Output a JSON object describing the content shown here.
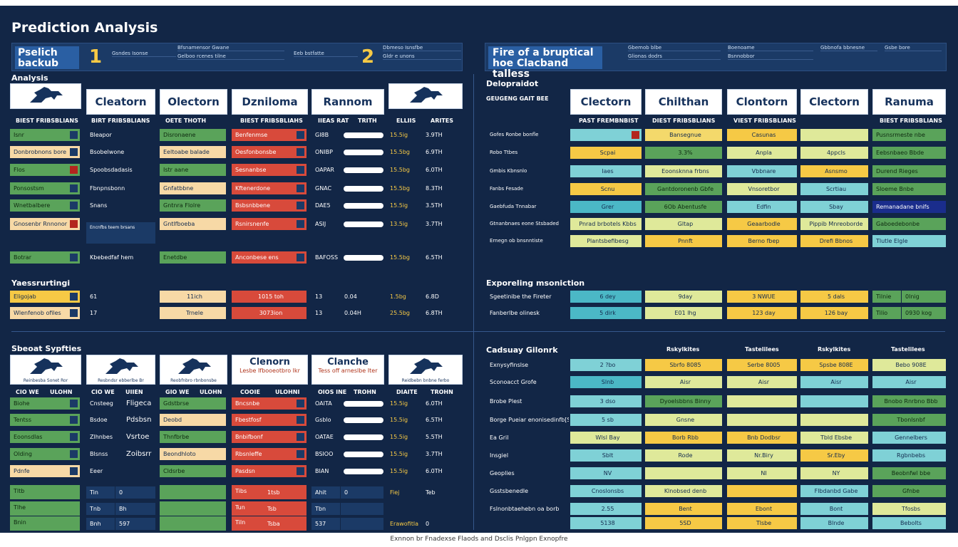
{
  "title": "Prediction Analysis",
  "footer": "Exnnon br Fnadexse Flaods and Dsclis Pnlgpn Exnopfre",
  "left_header": {
    "label": "Pselich backub",
    "num1": "1",
    "num2": "2",
    "mini": [
      "Gsndes Isonse",
      "Bfsnamensor Gwane",
      "Gelboo rcenes tilne",
      "Eeb bstfatte",
      "Dbmeso Isnsfbe",
      "Gldr e unons"
    ]
  },
  "right_header": {
    "label": "Fire of a bruptical hoe Clacband talless",
    "mini": [
      "Gbemob blbe",
      "Glionas dodrs",
      "Boenoame",
      "Bsnnobbor",
      "Gbbnofa bbnesne",
      "Gsbe bore"
    ]
  },
  "analysis": {
    "label": "Analysis",
    "cards": [
      "Cleatorn",
      "Olectorn",
      "Dzniloma",
      "Rannom"
    ],
    "col_headers": [
      "BIEST FRIBSBLIANS",
      "BIRT FRIBSBLIANS",
      "OETE THOTH",
      "BIEST FRIBSBLIAHS",
      "IIEAS RAT",
      "TRITH",
      "ELLIIS",
      "ARITES"
    ],
    "col1": [
      "Isnr",
      "Donbrobnons bore",
      "Flos",
      "Ponsostsm",
      "Wnetbalbere",
      "Gnosenbr Rnnonor",
      "Botrar"
    ],
    "col2": [
      "Bleapor",
      "Bsobelwone",
      "Spoobsdadasis",
      "Fbnpnsbonn",
      "Snans",
      "Encnfbs teem brsans",
      "Kbebedfaf hem"
    ],
    "col3": [
      "Disronaene",
      "Eeltoabe balade",
      "Istr aane",
      "Gnfatbbne",
      "Gntnra Flolre",
      "Gntlfboeba",
      "Enetdbe"
    ],
    "col4": [
      "Benfenmse",
      "Oesfonbonsbe",
      "Sesnanbse",
      "Kftenerdone",
      "Bsbsnbbene",
      "Rsnirsnenfe",
      "Anconbese ens"
    ],
    "col5": [
      "GI8B",
      "ONIBP",
      "OAPAR",
      "GNAC",
      "DAE5",
      "ASIJ",
      "BAFOSS"
    ],
    "col6": [
      "15.5ig",
      "15.5bg",
      "15.5bg",
      "15.5bg",
      "15.5ig",
      "13.5ig",
      "15.5bg"
    ],
    "col7": [
      "3.9TH",
      "6.9TH",
      "6.0TH",
      "8.3TH",
      "3.5TH",
      "3.7TH",
      "6.5TH"
    ]
  },
  "yearly": {
    "label": "Yaessrurtingi",
    "rows": [
      {
        "a": "Eligojab",
        "b": "61",
        "c": "11ich",
        "d": "1015 toh",
        "e": "13",
        "f": "0.04",
        "g": "1.5bg",
        "h": "6.8D"
      },
      {
        "a": "Wlenfenob ofiles",
        "b": "17",
        "c": "Trnele",
        "d": "3073ion",
        "e": "13",
        "f": "0.04H",
        "g": "25.5bg",
        "h": "6.8TH"
      }
    ]
  },
  "deloproidot": {
    "label": "Delopraidot",
    "sublabel": "GEUGENG GAIT BEE",
    "cards": [
      "Clectorn",
      "Chilthan",
      "Clontorn",
      "Clectorn",
      "Ranuma"
    ],
    "col_headers": [
      "PAST FREMBNBIST",
      "DIEST FRIBSBLIANS",
      "VIEST FRIBSBLIANS",
      "BIEST FRIBSBLIANS"
    ],
    "left": [
      "Gofes Ronbe bonfle",
      "Robo Ttbes",
      "Gmbis Kbnsnlo",
      "Fanbs Fesade",
      "Gaebfuda Tnnabar",
      "Gtnanbnaes eone Stsbaded",
      "Ernegn ob bnsnntiste"
    ],
    "c1": [
      "",
      "Scpai",
      "Iaes",
      "Scnu",
      "Grer",
      "Pnrad brbotels Kbbs",
      "Plantsbefibesg"
    ],
    "c2": [
      "Bansegnue",
      "3.3%",
      "Eoonsknna frbns",
      "Gantdoronenb Gbfe",
      "6Ob Abentusfe",
      "Gltap",
      "Pnnft"
    ],
    "c3": [
      "Casunas",
      "Anpla",
      "Vbbnare",
      "Vnsoretbor",
      "Edfin",
      "Geaarbodle",
      "Berno fbep"
    ],
    "c4": [
      "",
      "4ppcls",
      "Asnsmo",
      "Scrtiau",
      "Sbay",
      "Pippib Mnreoborde",
      "Drefi Bbnos"
    ],
    "c5": [
      "Pusnsrmeste nbe",
      "Eebsnbaeo Bbde",
      "Durend Rieges",
      "Sloeme Bnbe",
      "Remanadane bnifs",
      "Gaboedebonbe",
      "Tlutle Elgle"
    ]
  },
  "exploring": {
    "label": "Exporeling msoniction",
    "rows": [
      {
        "a": "Sgeetinibe the Fireter",
        "b": "6 dey",
        "c": "9day",
        "d": "3 NWUE",
        "e": "5 dals",
        "f": "Tilnie",
        "g": "0lnig"
      },
      {
        "a": "Fanberlbe olinesk",
        "b": "5 dirk",
        "c": "E01 lhg",
        "d": "123 day",
        "e": "126 bay",
        "f": "Tilio",
        "g": "0930 kog"
      }
    ]
  },
  "sports": {
    "label": "Sbeoat Sypfties",
    "cards": [
      "Clenorn",
      "Clanche"
    ],
    "card_subs": [
      "Lesbe Ifbooeotbro Ikr",
      "Tess off arneslbe Iter"
    ],
    "horse_caps": [
      "Reinbesba Sonet Ror",
      "Resbndsr ebberlbe Br",
      "Reobfnbro rbnbonsbe",
      "Reidbebn bnbne ferbo"
    ],
    "col_headers": [
      "CIO WE",
      "ULOHN",
      "CIO WE",
      "UIIEN",
      "GIO WE",
      "ULOHN",
      "COOIE",
      "ULOHNI",
      "OIOS INE",
      "TROHN",
      "DIAITE",
      "TROHN"
    ],
    "col1": [
      "Biohe",
      "Tentss",
      "Eoonsdlas",
      "Olding",
      "Pdnfe"
    ],
    "col2": [
      "Cnsteeg",
      "Bsdoe",
      "Zlhnbes",
      "Blsnss",
      "Eeer"
    ],
    "col2b": [
      "Fligeca",
      "Pdsbsn",
      "Vsrtoe",
      "Zoibsrr",
      ""
    ],
    "col3": [
      "Gdstbrse",
      "Deobd",
      "Thnfbrbe",
      "Beondhloto",
      "Cldsrbe"
    ],
    "col4": [
      "Bncsnbe",
      "Fbestfosf",
      "Bnbifbonf",
      "Rbsnleffe",
      "Pasdsn"
    ],
    "col5": [
      "OAITA",
      "Gsblo",
      "OATAE",
      "BSIOO",
      "BIAN"
    ],
    "col6": [
      "15.5ig",
      "15.5ig",
      "15.5ig",
      "15.5ig",
      "15.5ig"
    ],
    "col7": [
      "6.0TH",
      "6.5TH",
      "5.5TH",
      "3.7TH",
      "6.0TH"
    ]
  },
  "sports_totals": {
    "rows": [
      {
        "a": "Tltb",
        "b": "Tin",
        "c": "0",
        "d": "",
        "e": "Tibs",
        "f": "1tsb",
        "g": "Ahit",
        "h": "0",
        "i": "Fiej",
        "j": "Teb"
      },
      {
        "a": "Tlhe",
        "b": "Tnb",
        "c": "Bh",
        "d": "",
        "e": "Tun",
        "f": "Tsb",
        "g": "Tbn",
        "h": "",
        "i": "",
        "j": ""
      },
      {
        "a": "Bnin",
        "b": "Bnh",
        "c": "597",
        "d": "",
        "e": "Tiln",
        "f": "Tsba",
        "g": "537",
        "h": "",
        "i": "Erawofitla",
        "j": "0"
      }
    ]
  },
  "catalog": {
    "label": "Cadsuay Gilonrk",
    "col_headers": [
      "Rskylkites",
      "Tastelilees",
      "Rskylkites",
      "Tastelilees"
    ],
    "left": [
      "Exnysyfinslse",
      "Sconoacct Grofe",
      "Brobe Plest",
      "Borge Pueiar enonisedinfb[Si",
      "Ea Gril",
      "Insgiel",
      "Geoplies",
      "Gsstsbenedle",
      "Fslnonbtaehebn oa borb"
    ],
    "c1": [
      "2 ?bo",
      "Slnb",
      "3 dso",
      "5 sb",
      "Wlsl Bay",
      "Sblt",
      "NV",
      "Cnoslonsbs",
      "2.55",
      "5138"
    ],
    "c2": [
      "Sbrfo 8085",
      "Aisr",
      "Dyoelsbbns Binny",
      "Gnsne",
      "Borb Rbb",
      "Rode",
      "",
      "Klnobsed denb",
      "Bent",
      "5SD"
    ],
    "c3": [
      "Serbe 8005",
      "Aisr",
      "",
      "",
      "Bnb Dodbsr",
      "Nr.Biry",
      "NI",
      "",
      "Ebont",
      "Tlsbe"
    ],
    "c4": [
      "Spsbe 808E",
      "Aisr",
      "",
      "",
      "Tbld Ebsbe",
      "Sr.Eby",
      "NY",
      "Flbdanbd Gabe",
      "Bont",
      "Blnde"
    ],
    "c5": [
      "Bebo 908E",
      "Aisr",
      "Bnobo Rnrbno Bbb",
      "Tbonlsnbf",
      "Gennelbers",
      "Rgbnbebs",
      "Beobnfwl bbe",
      "Gfnbe",
      "Tfosbs",
      "Bebolts"
    ]
  }
}
